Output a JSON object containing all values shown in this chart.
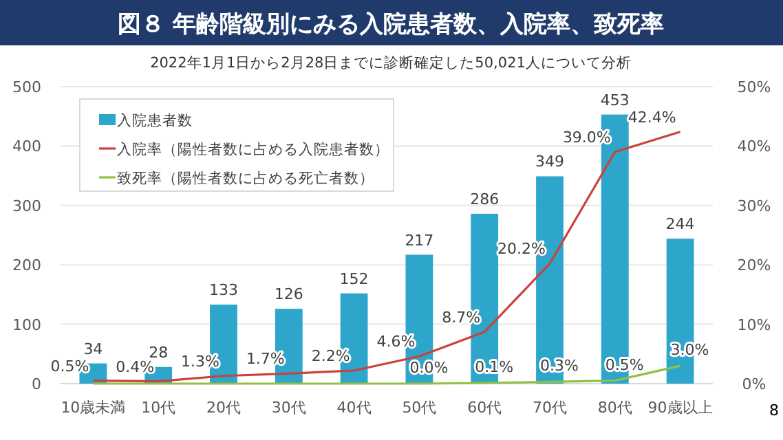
{
  "chart_data": {
    "type": "bar",
    "title": "図８ 年齢階級別にみる入院患者数、入院率、致死率",
    "subtitle": "2022年1月1日から2月28日までに診断確定した50,021人について分析",
    "categories": [
      "10歳未満",
      "10代",
      "20代",
      "30代",
      "40代",
      "50代",
      "60代",
      "70代",
      "80代",
      "90歳以上"
    ],
    "series": [
      {
        "name": "入院患者数",
        "color": "#2ea6cb",
        "values": [
          34,
          28,
          133,
          126,
          152,
          217,
          286,
          349,
          453,
          244
        ],
        "value_labels": [
          "34",
          "28",
          "133",
          "126",
          "152",
          "217",
          "286",
          "349",
          "453",
          "244"
        ]
      },
      {
        "name": "入院率（陽性者数に占める入院患者数）",
        "type": "line",
        "axis": "y2",
        "color": "#c9433b",
        "values": [
          0.5,
          0.4,
          1.3,
          1.7,
          2.2,
          4.6,
          8.7,
          20.2,
          39.0,
          42.4
        ],
        "value_labels": [
          "0.5%",
          "0.4%",
          "1.3%",
          "1.7%",
          "2.2%",
          "4.6%",
          "8.7%",
          "20.2%",
          "39.0%",
          "42.4%"
        ]
      },
      {
        "name": "致死率（陽性者数に占める死亡者数）",
        "type": "line",
        "axis": "y2",
        "color": "#92c047",
        "values": [
          0,
          0,
          0,
          0,
          0,
          0.0,
          0.1,
          0.3,
          0.5,
          3.0
        ],
        "value_labels": [
          null,
          null,
          null,
          null,
          null,
          "0.0%",
          "0.1%",
          "0.3%",
          "0.5%",
          "3.0%"
        ]
      }
    ],
    "ylim": [
      0,
      500
    ],
    "yticks": [
      0,
      100,
      200,
      300,
      400,
      500
    ],
    "y2lim": [
      0,
      50
    ],
    "y2ticks": [
      {
        "value": 0,
        "label": "0%"
      },
      {
        "value": 10,
        "label": "10%"
      },
      {
        "value": 20,
        "label": "20%"
      },
      {
        "value": 30,
        "label": "30%"
      },
      {
        "value": 40,
        "label": "40%"
      },
      {
        "value": 50,
        "label": "50%"
      }
    ],
    "grid": "y",
    "legend": "top left",
    "annotations": [
      "8"
    ]
  }
}
